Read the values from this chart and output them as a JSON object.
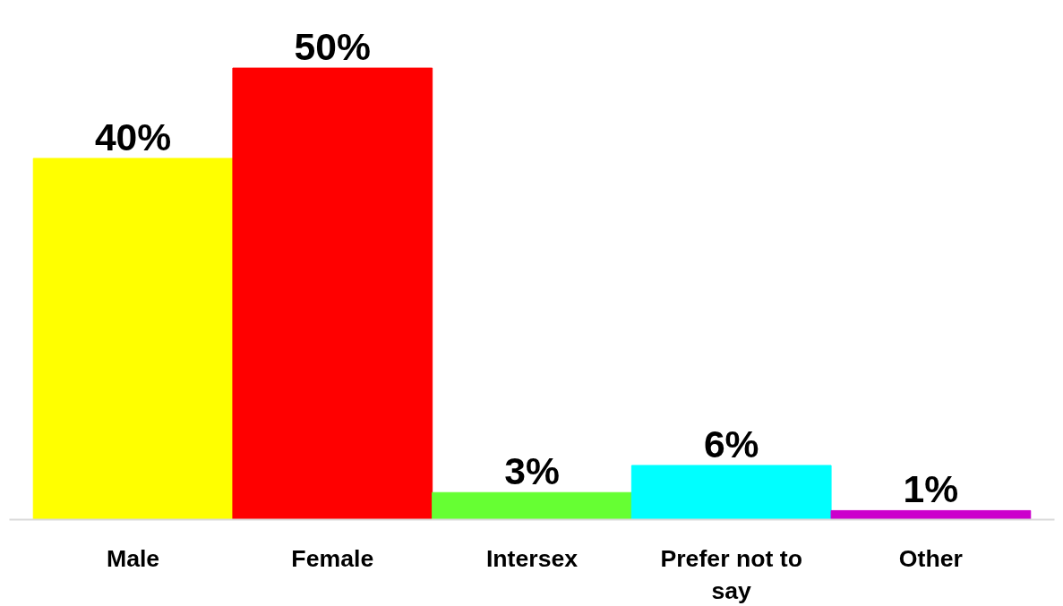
{
  "chart_data": {
    "type": "bar",
    "categories": [
      "Male",
      "Female",
      "Intersex",
      "Prefer not to say",
      "Other"
    ],
    "values": [
      40,
      50,
      3,
      6,
      1
    ],
    "colors": [
      "#ffff00",
      "#ff0000",
      "#66ff33",
      "#00ffff",
      "#cc00cc"
    ],
    "value_labels": [
      "40%",
      "50%",
      "3%",
      "6%",
      "1%"
    ],
    "grid": false
  }
}
